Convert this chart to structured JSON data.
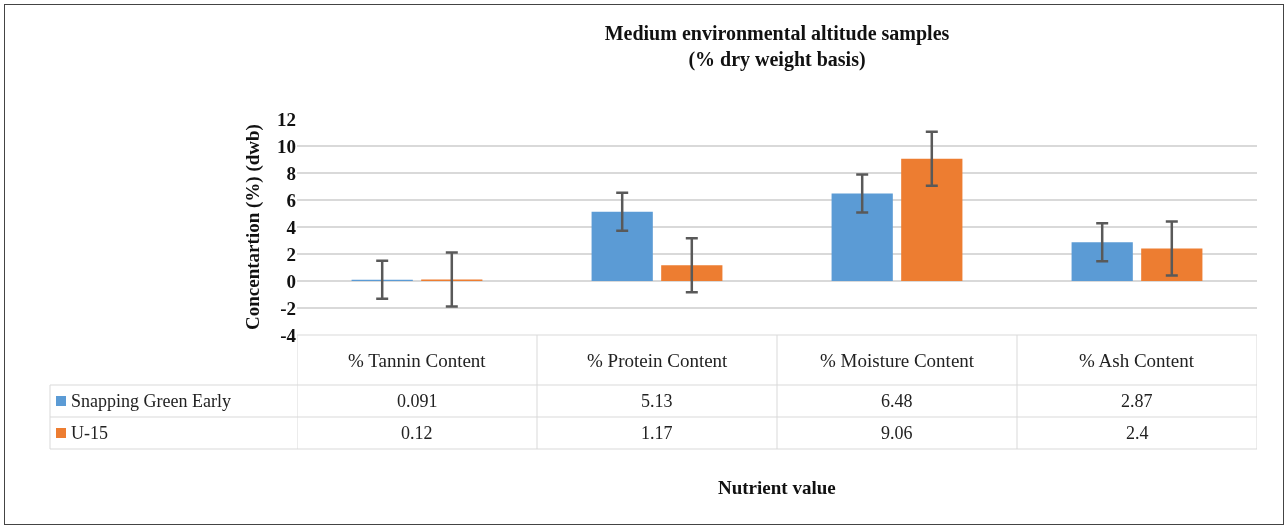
{
  "chart_data": {
    "type": "bar",
    "title": "Medium environmental altitude samples\n(% dry weight basis)",
    "annotations": [
      "Nutrient value"
    ],
    "ylabel": "Concentartion (%) (dwb)",
    "categories": [
      "% Tannin Content",
      "% Protein Content",
      "% Moisture Content",
      "% Ash Content"
    ],
    "series": [
      {
        "name": "Snapping Green Early",
        "color": "#5b9bd5",
        "values": [
          0.091,
          5.13,
          6.48,
          2.87
        ],
        "errors": [
          1.4,
          1.4,
          1.4,
          1.4
        ]
      },
      {
        "name": "U-15",
        "color": "#ed7d31",
        "values": [
          0.12,
          1.17,
          9.06,
          2.4
        ],
        "errors": [
          2,
          2,
          2,
          2
        ]
      }
    ],
    "ylim": [
      -4,
      12
    ],
    "yticks": [
      -4,
      -2,
      0,
      2,
      4,
      6,
      8,
      10,
      12
    ],
    "grid": "y",
    "legend": "bottom",
    "data_labels": true
  }
}
